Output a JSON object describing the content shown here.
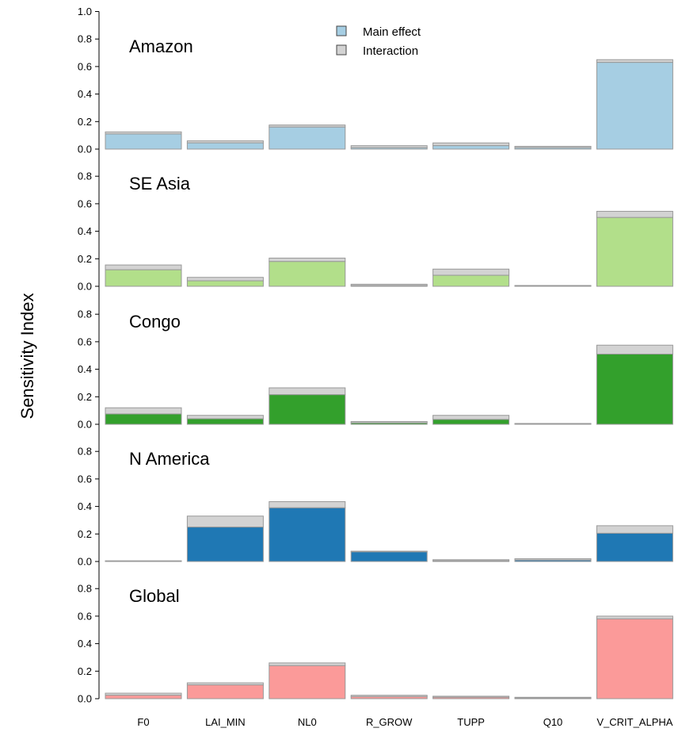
{
  "chart_data": {
    "type": "bar",
    "ylabel": "Sensitivity Index",
    "categories": [
      "F0",
      "LAI_MIN",
      "NL0",
      "R_GROW",
      "TUPP",
      "Q10",
      "V_CRIT_ALPHA"
    ],
    "ylim": [
      0,
      1.0
    ],
    "yticks": [
      "0.0",
      "0.2",
      "0.4",
      "0.6",
      "0.8",
      "1.0"
    ],
    "stacked": true,
    "legend": {
      "placement": "top-center",
      "items": [
        {
          "label": "Main effect",
          "color": "#a6cee3"
        },
        {
          "label": "Interaction",
          "color": "#d3d3d3"
        }
      ]
    },
    "interaction_color": "#d3d3d3",
    "panels": [
      {
        "name": "Amazon",
        "main_color": "#a6cee3",
        "series": [
          {
            "name": "Main effect",
            "values": [
              0.11,
              0.045,
              0.16,
              0.01,
              0.025,
              0.01,
              0.63
            ]
          },
          {
            "name": "Interaction",
            "values": [
              0.015,
              0.015,
              0.015,
              0.015,
              0.02,
              0.01,
              0.02
            ]
          }
        ]
      },
      {
        "name": "SE Asia",
        "main_color": "#b2df8a",
        "series": [
          {
            "name": "Main effect",
            "values": [
              0.12,
              0.04,
              0.18,
              0.005,
              0.08,
              0.003,
              0.5
            ]
          },
          {
            "name": "Interaction",
            "values": [
              0.035,
              0.025,
              0.025,
              0.01,
              0.045,
              0.003,
              0.045
            ]
          }
        ]
      },
      {
        "name": "Congo",
        "main_color": "#33a02c",
        "series": [
          {
            "name": "Main effect",
            "values": [
              0.075,
              0.04,
              0.215,
              0.01,
              0.035,
              0.003,
              0.51
            ]
          },
          {
            "name": "Interaction",
            "values": [
              0.045,
              0.025,
              0.05,
              0.01,
              0.03,
              0.003,
              0.065
            ]
          }
        ]
      },
      {
        "name": "N America",
        "main_color": "#1f78b4",
        "series": [
          {
            "name": "Main effect",
            "values": [
              0.003,
              0.25,
              0.39,
              0.07,
              0.005,
              0.01,
              0.205
            ]
          },
          {
            "name": "Interaction",
            "values": [
              0.002,
              0.08,
              0.045,
              0.005,
              0.008,
              0.01,
              0.055
            ]
          }
        ]
      },
      {
        "name": "Global",
        "main_color": "#fb9a99",
        "series": [
          {
            "name": "Main effect",
            "values": [
              0.025,
              0.1,
              0.24,
              0.015,
              0.01,
              0.005,
              0.58
            ]
          },
          {
            "name": "Interaction",
            "values": [
              0.015,
              0.015,
              0.02,
              0.01,
              0.008,
              0.005,
              0.02
            ]
          }
        ]
      }
    ]
  }
}
